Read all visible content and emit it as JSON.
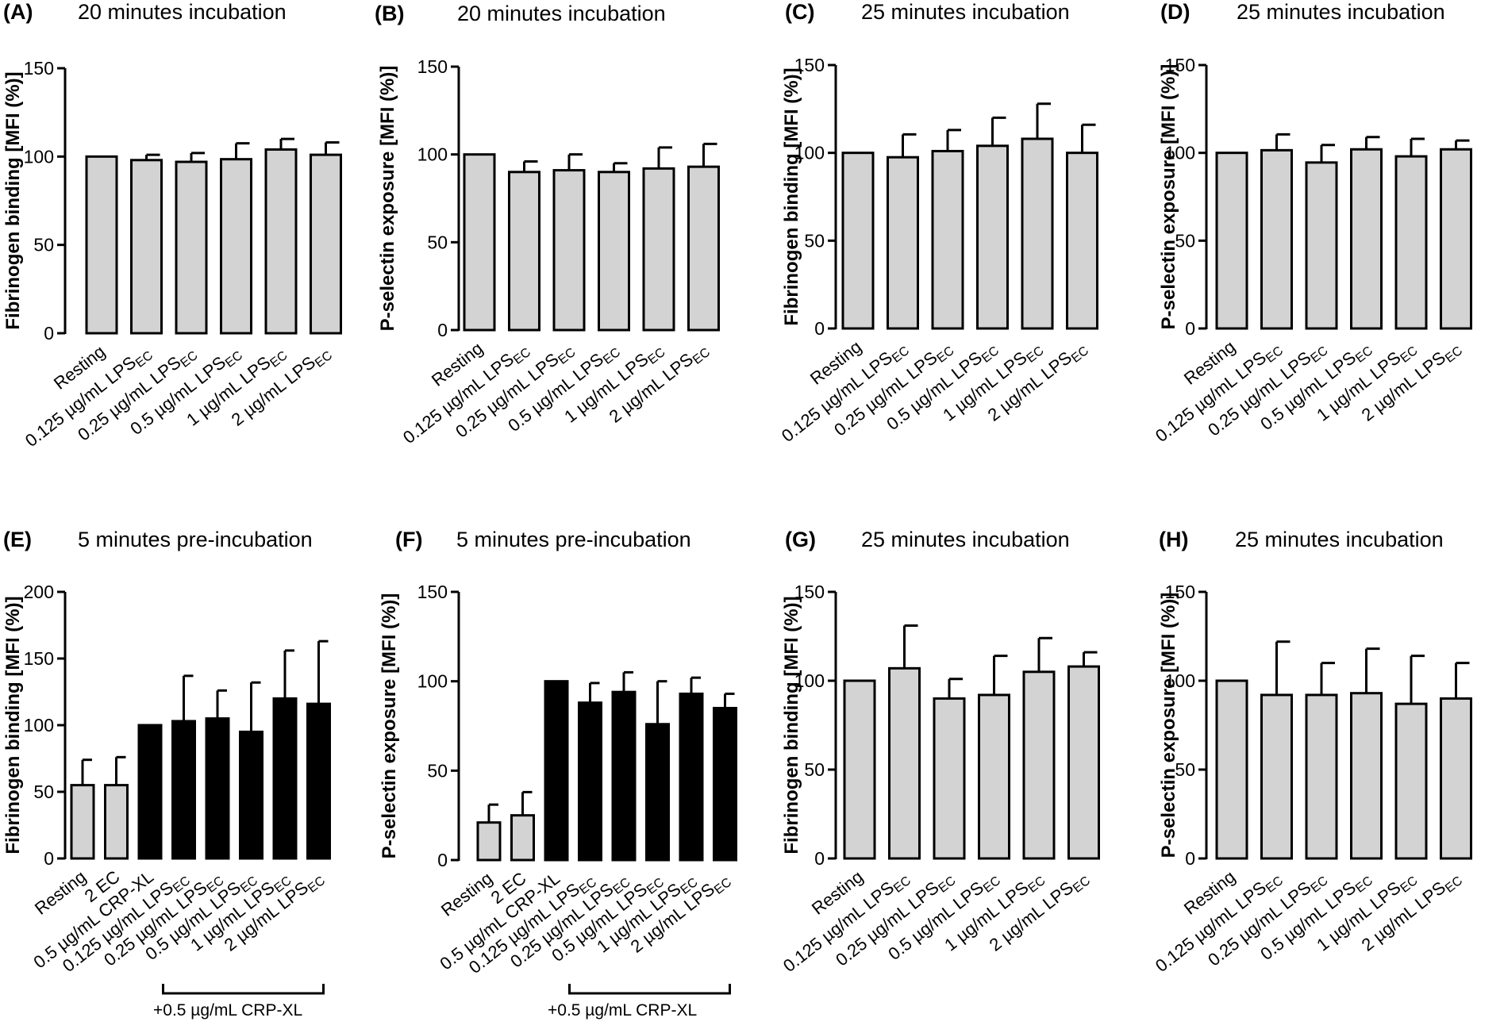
{
  "colors": {
    "light_bar": "#d3d3d3",
    "dark_bar": "#000000",
    "stroke": "#000000"
  },
  "chart_data": [
    {
      "type": "bar",
      "letter": "(A)",
      "title": "20 minutes incubation",
      "ylabel": "Fibrinogen binding [MFI (%)]",
      "ylim": [
        0,
        150
      ],
      "yticks": [
        "0",
        "50",
        "100",
        "150"
      ],
      "categories": [
        "Resting",
        "0.125 µg/mL LPS",
        "0.25 µg/mL LPS",
        "0.5 µg/mL LPS",
        "1 µg/mL LPS",
        "2 µg/mL LPS"
      ],
      "subscripts": [
        "",
        "EC",
        "EC",
        "EC",
        "EC",
        "EC"
      ],
      "values": [
        100,
        98,
        97,
        98.5,
        104,
        101
      ],
      "errors": [
        0,
        3,
        5,
        9,
        6,
        7
      ],
      "fills": [
        "light",
        "light",
        "light",
        "light",
        "light",
        "light"
      ]
    },
    {
      "type": "bar",
      "letter": "(B)",
      "title": "20 minutes incubation",
      "ylabel": "P-selectin exposure [MFI (%)]",
      "ylim": [
        0,
        150
      ],
      "yticks": [
        "0",
        "50",
        "100",
        "150"
      ],
      "categories": [
        "Resting",
        "0.125 µg/mL LPS",
        "0.25 µg/mL LPS",
        "0.5 µg/mL LPS",
        "1 µg/mL LPS",
        "2 µg/mL LPS"
      ],
      "subscripts": [
        "",
        "EC",
        "EC",
        "EC",
        "EC",
        "EC"
      ],
      "values": [
        100,
        90,
        91,
        90,
        92,
        93
      ],
      "errors": [
        0,
        6,
        9,
        5,
        12,
        13
      ],
      "fills": [
        "light",
        "light",
        "light",
        "light",
        "light",
        "light"
      ]
    },
    {
      "type": "bar",
      "letter": "(C)",
      "title": "25 minutes incubation",
      "ylabel": "Fibrinogen binding [MFI (%)]",
      "ylim": [
        0,
        150
      ],
      "yticks": [
        "0",
        "50",
        "100",
        "150"
      ],
      "categories": [
        "Resting",
        "0.125 µg/mL LPS",
        "0.25 µg/mL LPS",
        "0.5 µg/mL LPS",
        "1 µg/mL LPS",
        "2 µg/mL LPS"
      ],
      "subscripts": [
        "",
        "EC",
        "EC",
        "EC",
        "EC",
        "EC"
      ],
      "values": [
        100,
        97.5,
        101,
        104,
        108,
        100
      ],
      "errors": [
        0,
        13,
        12,
        16,
        20,
        16
      ],
      "fills": [
        "light",
        "light",
        "light",
        "light",
        "light",
        "light"
      ]
    },
    {
      "type": "bar",
      "letter": "(D)",
      "title": "25 minutes incubation",
      "ylabel": "P-selectin exposure [MFI (%)]",
      "ylim": [
        0,
        150
      ],
      "yticks": [
        "0",
        "50",
        "100",
        "150"
      ],
      "categories": [
        "Resting",
        "0.125 µg/mL LPS",
        "0.25 µg/mL LPS",
        "0.5 µg/mL LPS",
        "1 µg/mL LPS",
        "2 µg/mL LPS"
      ],
      "subscripts": [
        "",
        "EC",
        "EC",
        "EC",
        "EC",
        "EC"
      ],
      "values": [
        100,
        101.5,
        94.5,
        102,
        98,
        102
      ],
      "errors": [
        0,
        9,
        10,
        7,
        10,
        5
      ],
      "fills": [
        "light",
        "light",
        "light",
        "light",
        "light",
        "light"
      ]
    },
    {
      "type": "bar",
      "letter": "(E)",
      "title": "5 minutes pre-incubation",
      "ylabel": "Fibrinogen binding [MFI (%)]",
      "ylim": [
        0,
        200
      ],
      "yticks": [
        "0",
        "50",
        "100",
        "150",
        "200"
      ],
      "categories": [
        "Resting",
        "2 EC",
        "0.5 µg/mL CRP-XL",
        "0.125 µg/mL LPS",
        "0.25 µg/mL LPS",
        "0.5 µg/mL LPS",
        "1 µg/mL LPS",
        "2 µg/mL LPS"
      ],
      "subscripts": [
        "",
        "",
        "",
        "EC",
        "EC",
        "EC",
        "EC",
        "EC"
      ],
      "values": [
        55,
        55,
        100,
        103,
        105,
        95,
        120,
        116
      ],
      "errors": [
        19,
        21,
        0,
        34,
        21,
        37,
        36,
        47
      ],
      "fills": [
        "light",
        "light",
        "dark",
        "dark",
        "dark",
        "dark",
        "dark",
        "dark"
      ],
      "bracket": {
        "label": "+0.5 µg/mL CRP-XL",
        "from": 3,
        "to": 7
      }
    },
    {
      "type": "bar",
      "letter": "(F)",
      "title": "5 minutes pre-incubation",
      "ylabel": "P-selectin exposure [MFI (%)]",
      "ylim": [
        0,
        150
      ],
      "yticks": [
        "0",
        "50",
        "100",
        "150"
      ],
      "categories": [
        "Resting",
        "2 EC",
        "0.5 µg/mL CRP-XL",
        "0.125 µg/mL LPS",
        "0.25 µg/mL LPS",
        "0.5 µg/mL LPS",
        "1 µg/mL LPS",
        "2 µg/mL LPS"
      ],
      "subscripts": [
        "",
        "",
        "",
        "EC",
        "EC",
        "EC",
        "EC",
        "EC"
      ],
      "values": [
        21,
        25,
        100,
        88,
        94,
        76,
        93,
        85
      ],
      "errors": [
        10,
        13,
        0,
        11,
        11,
        24,
        9,
        8
      ],
      "fills": [
        "light",
        "light",
        "dark",
        "dark",
        "dark",
        "dark",
        "dark",
        "dark"
      ],
      "bracket": {
        "label": "+0.5 µg/mL CRP-XL",
        "from": 3,
        "to": 7
      }
    },
    {
      "type": "bar",
      "letter": "(G)",
      "title": "25 minutes incubation",
      "ylabel": "Fibrinogen binding [MFI (%)]",
      "ylim": [
        0,
        150
      ],
      "yticks": [
        "0",
        "50",
        "100",
        "150"
      ],
      "categories": [
        "Resting",
        "0.125 µg/mL LPS",
        "0.25 µg/mL LPS",
        "0.5 µg/mL LPS",
        "1 µg/mL LPS",
        "2 µg/mL LPS"
      ],
      "subscripts": [
        "",
        "EC",
        "EC",
        "EC",
        "EC",
        "EC"
      ],
      "values": [
        100,
        107,
        90,
        92,
        105,
        108
      ],
      "errors": [
        0,
        24,
        11,
        22,
        19,
        8
      ],
      "fills": [
        "light",
        "light",
        "light",
        "light",
        "light",
        "light"
      ]
    },
    {
      "type": "bar",
      "letter": "(H)",
      "title": "25 minutes incubation",
      "ylabel": "P-selectin exposure [MFI (%)]",
      "ylim": [
        0,
        150
      ],
      "yticks": [
        "0",
        "50",
        "100",
        "150"
      ],
      "categories": [
        "Resting",
        "0.125 µg/mL LPS",
        "0.25 µg/mL LPS",
        "0.5 µg/mL LPS",
        "1 µg/mL LPS",
        "2 µg/mL LPS"
      ],
      "subscripts": [
        "",
        "EC",
        "EC",
        "EC",
        "EC",
        "EC"
      ],
      "values": [
        100,
        92,
        92,
        93,
        87,
        90
      ],
      "errors": [
        0,
        30,
        18,
        25,
        27,
        20
      ],
      "fills": [
        "light",
        "light",
        "light",
        "light",
        "light",
        "light"
      ]
    }
  ]
}
